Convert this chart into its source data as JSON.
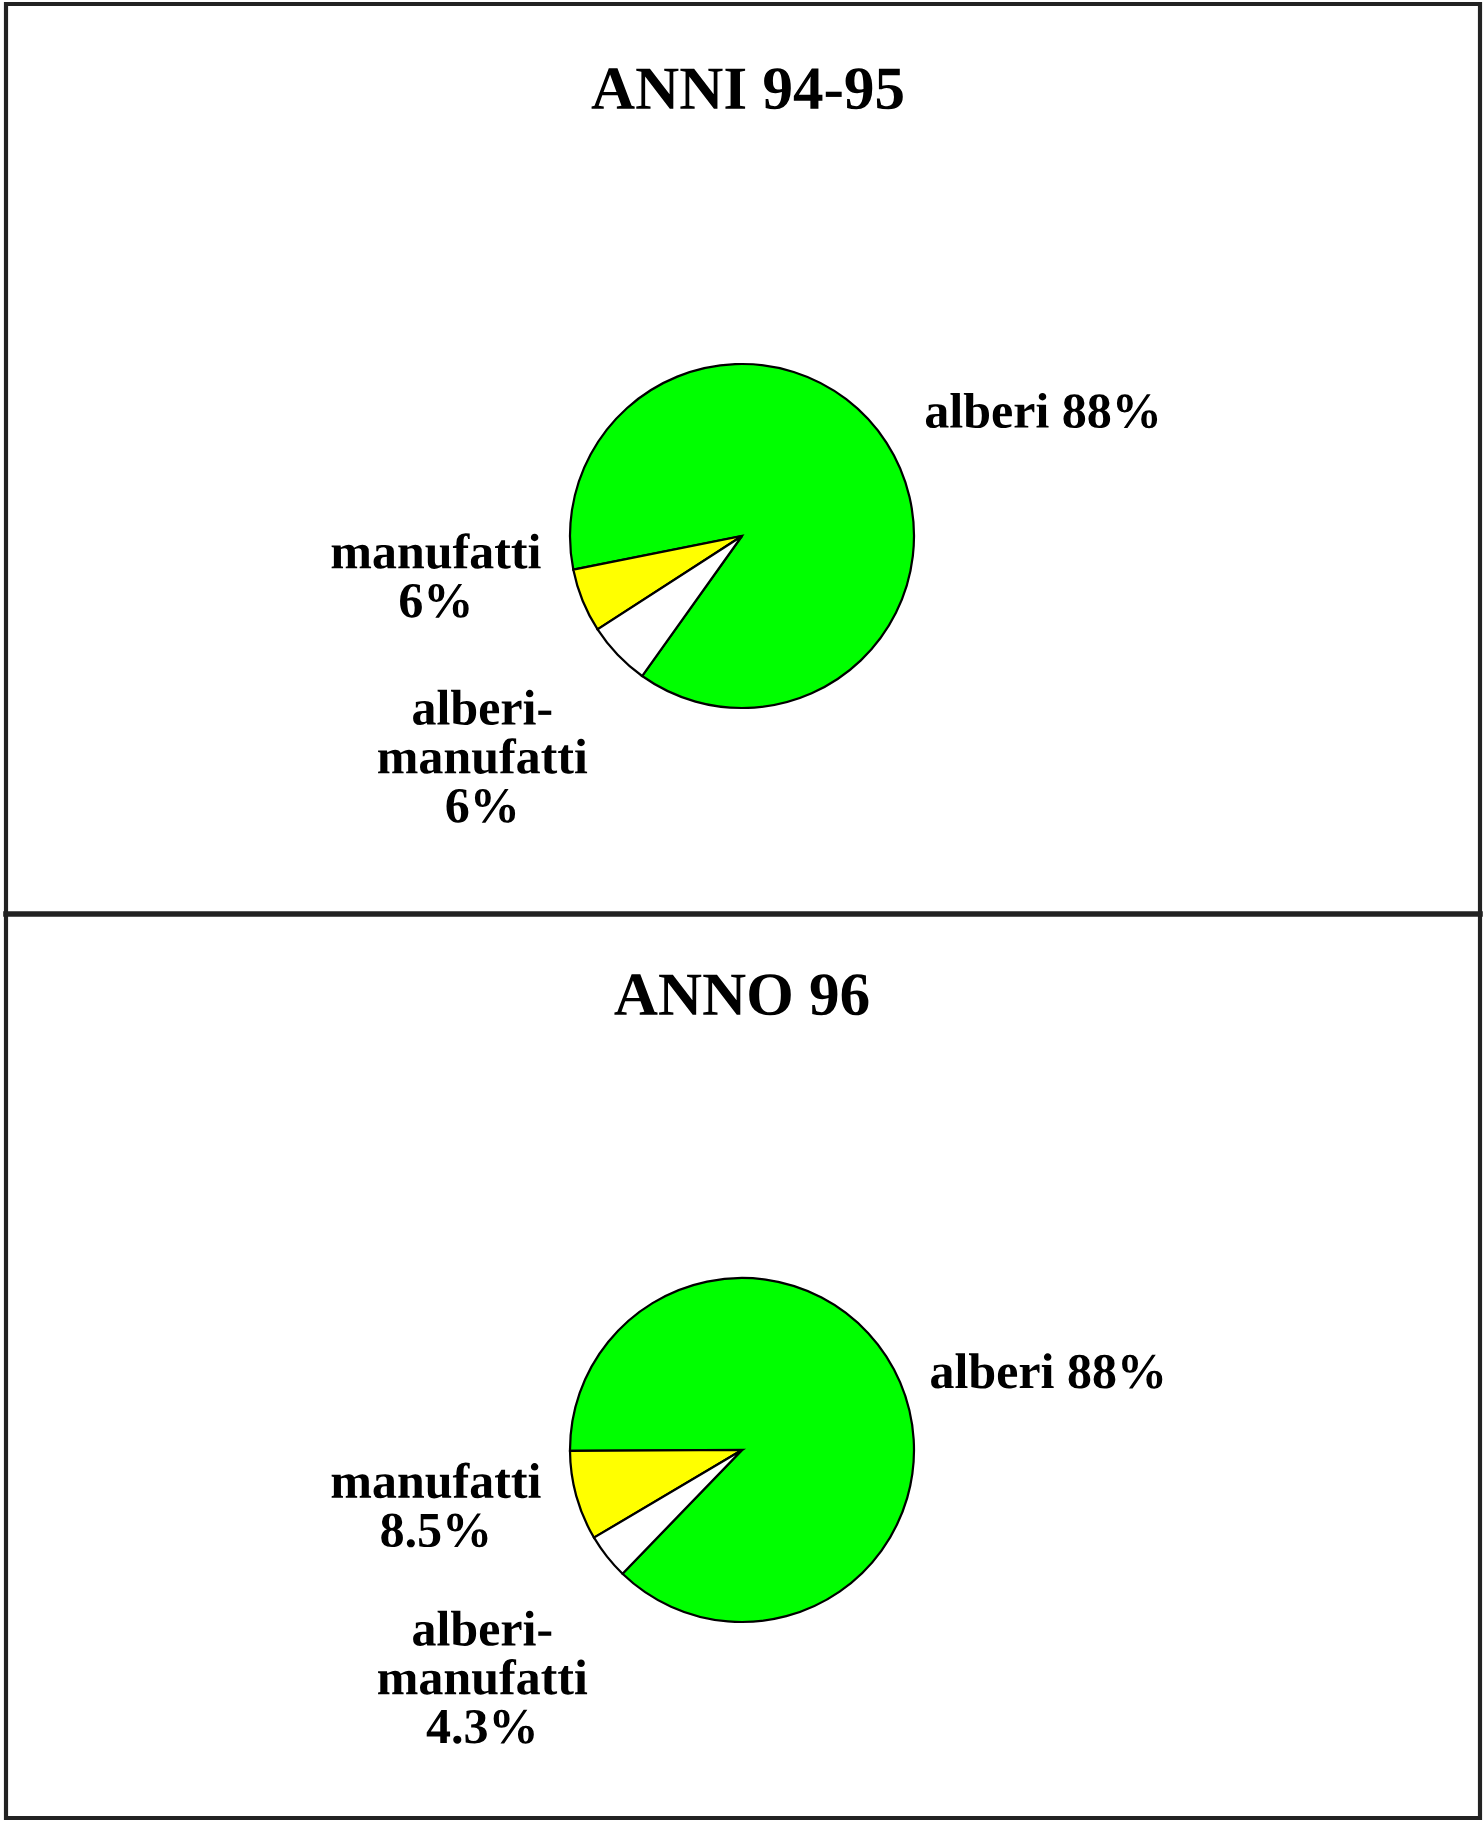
{
  "chart_data": [
    {
      "type": "pie",
      "title": "ANNI 94-95",
      "categories": [
        "alberi",
        "manufatti",
        "alberi-manufatti"
      ],
      "values": [
        88,
        6,
        6
      ],
      "colors": [
        "#00ff00",
        "#ffff00",
        "#ffffff"
      ],
      "value_labels": [
        "88%",
        "6%",
        "6%"
      ]
    },
    {
      "type": "pie",
      "title": "ANNO 96",
      "categories": [
        "alberi",
        "manufatti",
        "alberi-manufatti"
      ],
      "values": [
        88,
        8.5,
        4.3
      ],
      "colors": [
        "#00ff00",
        "#ffff00",
        "#ffffff"
      ],
      "value_labels": [
        "88%",
        "8.5%",
        "4.3%"
      ]
    }
  ]
}
